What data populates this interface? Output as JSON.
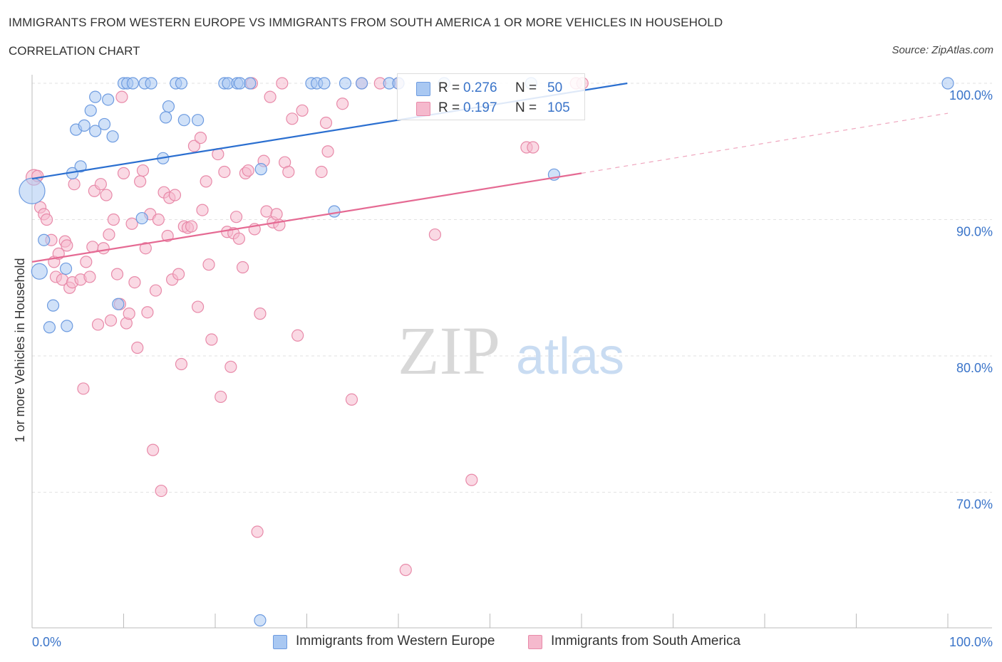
{
  "title": "IMMIGRANTS FROM WESTERN EUROPE VS IMMIGRANTS FROM SOUTH AMERICA 1 OR MORE VEHICLES IN HOUSEHOLD",
  "subtitle": "CORRELATION CHART",
  "source": "Source: ZipAtlas.com",
  "watermark": {
    "zip": "ZIP",
    "atlas": "atlas"
  },
  "colors": {
    "blue_fill": "#a9c8f2",
    "blue_stroke": "#6d9be0",
    "blue_line": "#2b6fd0",
    "pink_fill": "#f5b9cd",
    "pink_stroke": "#e88aa9",
    "pink_line": "#e56a93",
    "tick_text": "#3a74c9",
    "grid": "#e2e2e2"
  },
  "legend": {
    "series1": {
      "r_label": "R =",
      "r_value": "0.276",
      "n_label": "N =",
      "n_value": "50"
    },
    "series2": {
      "r_label": "R =",
      "r_value": "0.197",
      "n_label": "N =",
      "n_value": "105"
    }
  },
  "bottom_legend": [
    "Immigrants from Western Europe",
    "Immigrants from South America"
  ],
  "chart_data": {
    "type": "scatter",
    "title": "IMMIGRANTS FROM WESTERN EUROPE VS IMMIGRANTS FROM SOUTH AMERICA 1 OR MORE VEHICLES IN HOUSEHOLD",
    "xlabel": "",
    "ylabel": "1 or more Vehicles in Household",
    "xlim": [
      0,
      100
    ],
    "ylim": [
      60.5,
      100.5
    ],
    "x_tick_labels": [
      "0.0%",
      "100.0%"
    ],
    "y_ticks": [
      70,
      80,
      90,
      100
    ],
    "y_tick_labels": [
      "70.0%",
      "80.0%",
      "90.0%",
      "100.0%"
    ],
    "grid": true,
    "series": [
      {
        "name": "Immigrants from Western Europe",
        "color": "#a9c8f2",
        "trend": {
          "x": [
            0,
            65
          ],
          "y": [
            93.0,
            100.0
          ],
          "dashed_to": null
        },
        "points": [
          [
            0.0,
            92.1,
            18
          ],
          [
            0.8,
            86.2,
            11
          ],
          [
            1.3,
            88.5,
            8
          ],
          [
            2.3,
            83.7,
            8
          ],
          [
            1.9,
            82.1,
            8
          ],
          [
            3.8,
            82.2,
            8
          ],
          [
            4.4,
            93.4,
            8
          ],
          [
            5.3,
            93.9,
            8
          ],
          [
            3.7,
            86.4,
            8
          ],
          [
            4.8,
            96.6,
            8
          ],
          [
            5.7,
            96.9,
            8
          ],
          [
            6.9,
            96.5,
            8
          ],
          [
            6.4,
            98.0,
            8
          ],
          [
            6.9,
            99.0,
            8
          ],
          [
            8.3,
            98.8,
            8
          ],
          [
            7.9,
            97.0,
            8
          ],
          [
            8.8,
            96.1,
            8
          ],
          [
            9.4,
            83.8,
            8
          ],
          [
            10.0,
            100.0,
            8
          ],
          [
            10.4,
            100.0,
            8
          ],
          [
            11.0,
            100.0,
            8
          ],
          [
            12.3,
            100.0,
            8
          ],
          [
            13.0,
            100.0,
            8
          ],
          [
            12.0,
            90.1,
            8
          ],
          [
            14.3,
            94.5,
            8
          ],
          [
            14.9,
            98.3,
            8
          ],
          [
            15.7,
            100.0,
            8
          ],
          [
            16.3,
            100.0,
            8
          ],
          [
            14.6,
            97.5,
            8
          ],
          [
            16.6,
            97.3,
            8
          ],
          [
            18.1,
            97.3,
            8
          ],
          [
            21.0,
            100.0,
            8
          ],
          [
            21.4,
            100.0,
            8
          ],
          [
            22.4,
            100.0,
            8
          ],
          [
            22.7,
            100.0,
            8
          ],
          [
            23.8,
            100.0,
            8
          ],
          [
            25.0,
            93.7,
            8
          ],
          [
            30.5,
            100.0,
            8
          ],
          [
            31.1,
            100.0,
            8
          ],
          [
            31.9,
            100.0,
            8
          ],
          [
            34.2,
            100.0,
            8
          ],
          [
            33.0,
            90.6,
            8
          ],
          [
            36.0,
            100.0,
            8
          ],
          [
            39.0,
            100.0,
            8
          ],
          [
            40.0,
            100.0,
            8
          ],
          [
            45.0,
            100.0,
            8
          ],
          [
            54.5,
            100.0,
            8
          ],
          [
            57.0,
            93.3,
            8
          ],
          [
            100.0,
            100.0,
            8
          ],
          [
            24.9,
            60.6,
            8
          ]
        ]
      },
      {
        "name": "Immigrants from South America",
        "color": "#f5b9cd",
        "trend": {
          "x": [
            0,
            60
          ],
          "y": [
            86.9,
            93.4
          ],
          "dashed_to": [
            100,
            97.8
          ]
        },
        "points": [
          [
            0.2,
            93.1,
            11
          ],
          [
            0.6,
            93.2,
            8
          ],
          [
            0.9,
            90.9,
            8
          ],
          [
            1.3,
            90.4,
            8
          ],
          [
            1.6,
            90.0,
            8
          ],
          [
            2.1,
            88.5,
            8
          ],
          [
            2.4,
            86.9,
            8
          ],
          [
            2.6,
            85.8,
            8
          ],
          [
            2.9,
            87.5,
            8
          ],
          [
            3.3,
            85.6,
            8
          ],
          [
            3.6,
            88.4,
            8
          ],
          [
            3.8,
            88.1,
            8
          ],
          [
            4.1,
            85.0,
            8
          ],
          [
            4.4,
            85.4,
            8
          ],
          [
            4.6,
            92.6,
            8
          ],
          [
            5.3,
            85.6,
            8
          ],
          [
            5.6,
            77.6,
            8
          ],
          [
            5.9,
            86.9,
            8
          ],
          [
            6.3,
            85.8,
            8
          ],
          [
            6.6,
            88.0,
            8
          ],
          [
            6.8,
            92.1,
            8
          ],
          [
            7.2,
            82.3,
            8
          ],
          [
            7.5,
            92.6,
            8
          ],
          [
            7.8,
            87.9,
            8
          ],
          [
            8.1,
            91.8,
            8
          ],
          [
            8.4,
            88.9,
            8
          ],
          [
            8.6,
            82.6,
            8
          ],
          [
            8.9,
            90.0,
            8
          ],
          [
            9.3,
            86.0,
            8
          ],
          [
            9.6,
            83.8,
            8
          ],
          [
            10.0,
            93.4,
            8
          ],
          [
            10.3,
            82.4,
            8
          ],
          [
            10.6,
            83.1,
            8
          ],
          [
            10.9,
            89.7,
            8
          ],
          [
            11.2,
            85.4,
            8
          ],
          [
            11.5,
            80.6,
            8
          ],
          [
            11.8,
            92.8,
            8
          ],
          [
            12.1,
            93.6,
            8
          ],
          [
            12.4,
            87.9,
            8
          ],
          [
            12.6,
            83.2,
            8
          ],
          [
            12.9,
            90.4,
            8
          ],
          [
            13.2,
            73.1,
            8
          ],
          [
            13.5,
            84.8,
            8
          ],
          [
            13.8,
            90.0,
            8
          ],
          [
            14.1,
            70.1,
            8
          ],
          [
            14.4,
            92.0,
            8
          ],
          [
            14.8,
            88.8,
            8
          ],
          [
            15.0,
            91.6,
            8
          ],
          [
            15.3,
            85.6,
            8
          ],
          [
            15.6,
            91.8,
            8
          ],
          [
            16.0,
            86.0,
            8
          ],
          [
            16.3,
            79.4,
            8
          ],
          [
            16.6,
            89.5,
            8
          ],
          [
            17.0,
            89.4,
            8
          ],
          [
            17.4,
            89.5,
            8
          ],
          [
            17.7,
            95.4,
            8
          ],
          [
            18.1,
            83.6,
            8
          ],
          [
            18.4,
            96.0,
            8
          ],
          [
            18.6,
            90.7,
            8
          ],
          [
            19.0,
            92.8,
            8
          ],
          [
            19.3,
            86.7,
            8
          ],
          [
            19.6,
            81.2,
            8
          ],
          [
            20.3,
            94.8,
            8
          ],
          [
            20.6,
            77.0,
            8
          ],
          [
            21.0,
            93.5,
            8
          ],
          [
            21.3,
            89.1,
            8
          ],
          [
            21.7,
            79.2,
            8
          ],
          [
            22.0,
            89.0,
            8
          ],
          [
            22.3,
            90.2,
            8
          ],
          [
            22.6,
            88.6,
            8
          ],
          [
            23.0,
            86.5,
            8
          ],
          [
            23.3,
            93.4,
            8
          ],
          [
            23.6,
            93.6,
            8
          ],
          [
            24.0,
            100.0,
            8
          ],
          [
            24.3,
            89.3,
            8
          ],
          [
            24.6,
            67.1,
            8
          ],
          [
            24.9,
            83.1,
            8
          ],
          [
            25.3,
            94.3,
            8
          ],
          [
            25.6,
            90.6,
            8
          ],
          [
            26.0,
            99.0,
            8
          ],
          [
            26.3,
            89.8,
            8
          ],
          [
            26.7,
            90.4,
            8
          ],
          [
            27.0,
            89.6,
            8
          ],
          [
            27.3,
            100.0,
            8
          ],
          [
            27.6,
            94.2,
            8
          ],
          [
            28.0,
            93.5,
            8
          ],
          [
            28.4,
            97.4,
            8
          ],
          [
            29.0,
            81.5,
            8
          ],
          [
            29.5,
            98.0,
            8
          ],
          [
            31.6,
            93.5,
            8
          ],
          [
            32.1,
            97.1,
            8
          ],
          [
            32.3,
            95.0,
            8
          ],
          [
            33.9,
            98.5,
            8
          ],
          [
            34.9,
            76.8,
            8
          ],
          [
            36.0,
            100.0,
            8
          ],
          [
            38.0,
            100.0,
            8
          ],
          [
            40.0,
            100.0,
            8
          ],
          [
            40.8,
            64.3,
            8
          ],
          [
            44.0,
            88.9,
            8
          ],
          [
            48.0,
            70.9,
            8
          ],
          [
            54.0,
            95.3,
            8
          ],
          [
            54.7,
            95.3,
            8
          ],
          [
            59.4,
            100.0,
            8
          ],
          [
            60.1,
            100.0,
            8
          ],
          [
            9.8,
            99.0,
            8
          ]
        ]
      }
    ]
  }
}
